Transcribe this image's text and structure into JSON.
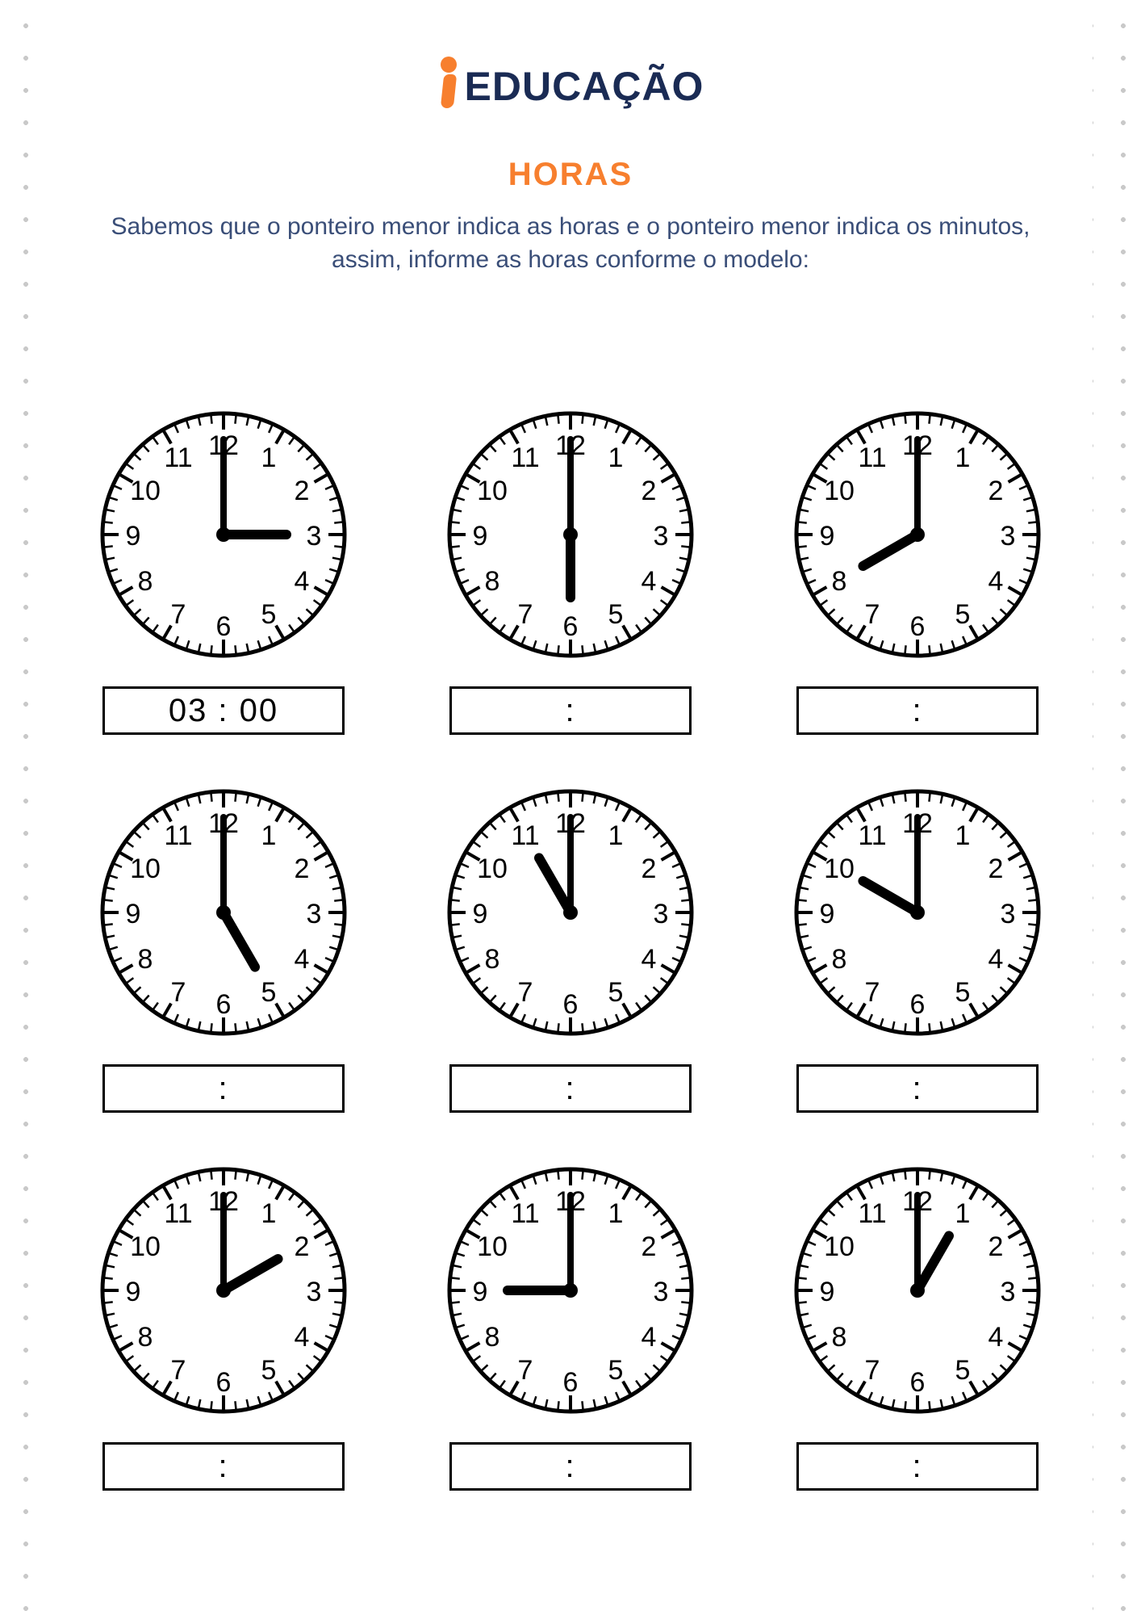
{
  "logo": {
    "text": "EDUCAÇÃO",
    "accent_color": "#f77f2e",
    "text_color": "#1a2b54"
  },
  "title": "HORAS",
  "instructions": "Sabemos que o ponteiro menor indica as horas e o ponteiro menor indica os minutos, assim, informe as horas conforme o modelo:",
  "colors": {
    "background": "#ffffff",
    "dot": "#c9c9c9",
    "title": "#f77f2e",
    "instruction_text": "#3a4e78",
    "clock_stroke": "#000000",
    "answer_border": "#000000"
  },
  "clock_style": {
    "radius": 150,
    "outer_stroke": 5,
    "numeral_radius": 112,
    "numeral_fontsize": 34,
    "major_tick_outer": 148,
    "major_tick_inner": 130,
    "minor_tick_outer": 148,
    "minor_tick_inner": 138,
    "tick_stroke": 3,
    "hour_hand_len": 78,
    "hour_hand_width": 12,
    "minute_hand_len": 118,
    "minute_hand_width": 8,
    "hub_radius": 9
  },
  "clocks": [
    {
      "hour": 3,
      "minute": 0,
      "answer": "03 : 00"
    },
    {
      "hour": 6,
      "minute": 0,
      "answer": ":"
    },
    {
      "hour": 8,
      "minute": 0,
      "answer": ":"
    },
    {
      "hour": 5,
      "minute": 0,
      "answer": ":"
    },
    {
      "hour": 11,
      "minute": 0,
      "answer": ":"
    },
    {
      "hour": 10,
      "minute": 0,
      "answer": ":"
    },
    {
      "hour": 2,
      "minute": 0,
      "answer": ":"
    },
    {
      "hour": 9,
      "minute": 0,
      "answer": ":"
    },
    {
      "hour": 1,
      "minute": 0,
      "answer": ":"
    }
  ]
}
